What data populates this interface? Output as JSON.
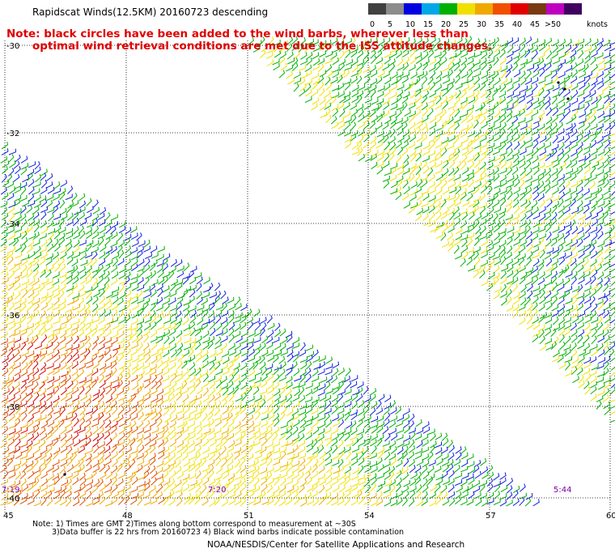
{
  "header": {
    "title": "Rapidscat Winds(12.5KM) 20160723 descending",
    "note_line1": "Note: black circles have been added to the wind barbs, wherever less than",
    "note_line2": "optimal wind retrieval conditions are met due to the ISS attitude changes."
  },
  "legend": {
    "unit": "knots",
    "bins": [
      {
        "label": "0",
        "color": "#404040"
      },
      {
        "label": "5",
        "color": "#8c8c8c"
      },
      {
        "label": "10",
        "color": "#0000e0"
      },
      {
        "label": "15",
        "color": "#00a8e8"
      },
      {
        "label": "20",
        "color": "#00b000"
      },
      {
        "label": "25",
        "color": "#f0e000"
      },
      {
        "label": "30",
        "color": "#f0a800"
      },
      {
        "label": "35",
        "color": "#f05000"
      },
      {
        "label": "40",
        "color": "#e00000"
      },
      {
        "label": "45",
        "color": "#7a3a10"
      },
      {
        "label": ">50",
        "color": "#c000c0"
      },
      {
        "label": "",
        "color": "#400060"
      }
    ]
  },
  "axes": {
    "lat_labels": [
      "-30",
      "-32",
      "-34",
      "-36",
      "-38",
      "-40"
    ],
    "lon_labels": [
      "45",
      "48",
      "51",
      "54",
      "57",
      "60"
    ]
  },
  "times": [
    "7:19",
    "7:20",
    "5:44"
  ],
  "footer": {
    "line1": "Note: 1) Times are GMT 2)Times along bottom correspond to measurement at ~30S",
    "line2": "3)Data buffer is 22 hrs from 20160723 4) Black wind barbs indicate possible contamination",
    "credit": "NOAA/NESDIS/Center for Satellite Applications and Research"
  }
}
